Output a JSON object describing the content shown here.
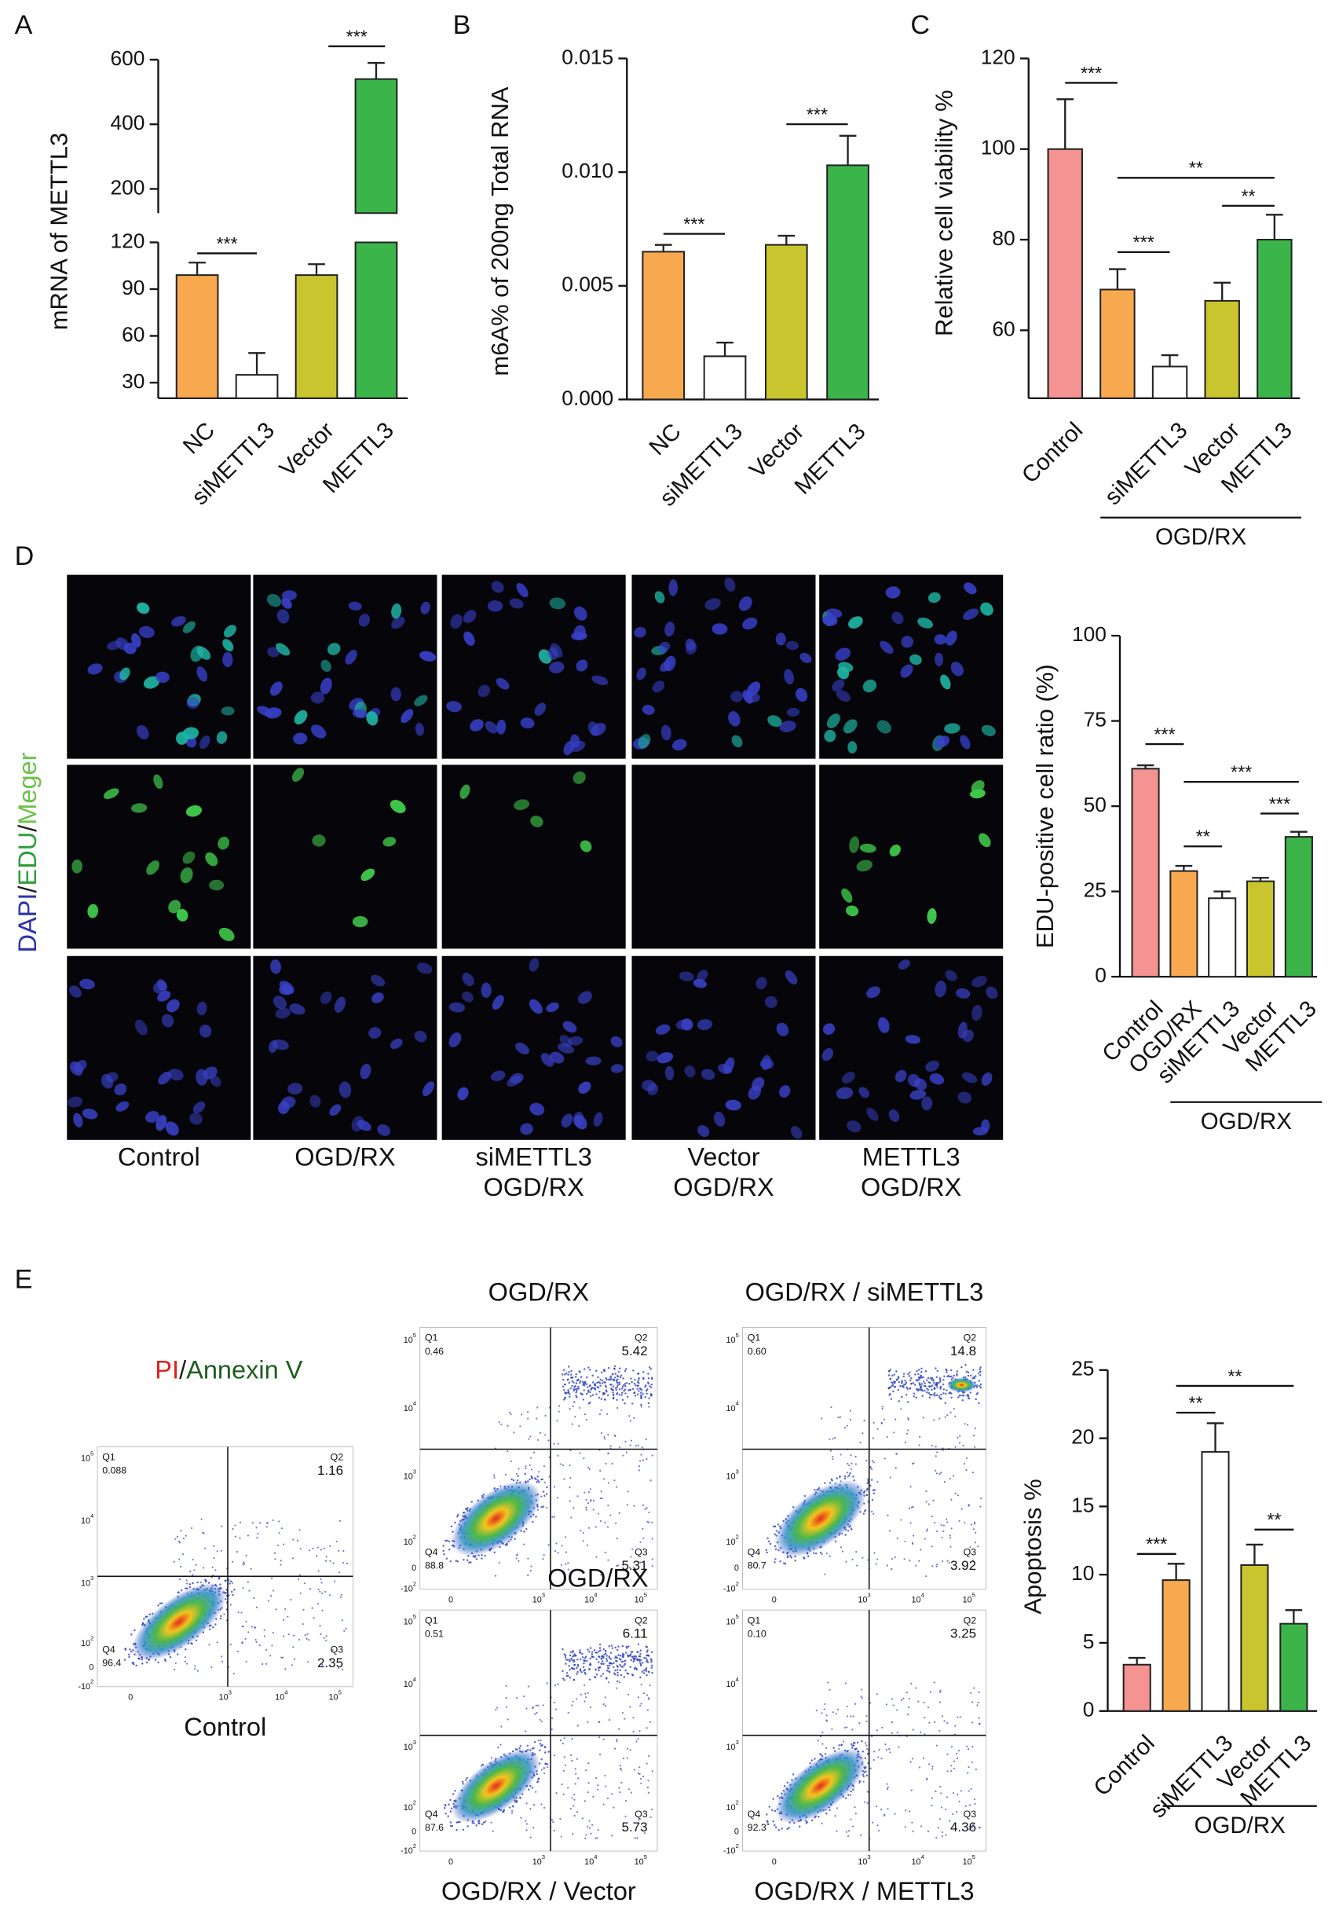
{
  "chart_data": [
    {
      "panel": "A",
      "type": "bar",
      "y_label": "mRNA of METTL3",
      "categories": [
        "NC",
        "siMETTL3",
        "Vector",
        "METTL3"
      ],
      "values": [
        99,
        35,
        99,
        540
      ],
      "error": [
        8,
        14,
        7,
        50
      ],
      "colors": [
        "#F8A94F",
        "#FFFFFF",
        "#C9C52F",
        "#3BB54A"
      ],
      "ylim": [
        20,
        600
      ],
      "ybreak": [
        120,
        125
      ],
      "yticks": [
        30,
        60,
        90,
        120,
        200,
        400,
        600
      ],
      "annotations": [
        "***",
        "***"
      ]
    },
    {
      "panel": "B",
      "type": "bar",
      "y_label": "m6A% of 200ng Total RNA",
      "categories": [
        "NC",
        "siMETTL3",
        "Vector",
        "METTL3"
      ],
      "values": [
        0.0065,
        0.0019,
        0.0068,
        0.0103
      ],
      "error": [
        0.0003,
        0.0006,
        0.0004,
        0.0013
      ],
      "colors": [
        "#F8A94F",
        "#FFFFFF",
        "#C9C52F",
        "#3BB54A"
      ],
      "ylim": [
        0,
        0.015
      ],
      "yticks": [
        {
          "value": 0,
          "label": "0.000"
        },
        0.005,
        {
          "value": 0.01,
          "label": "0.010"
        },
        0.015
      ],
      "annotations": [
        "***",
        "***"
      ]
    },
    {
      "panel": "C",
      "type": "bar",
      "y_label": "Relative cell viability %",
      "categories": [
        "Control",
        null,
        "siMETTL3",
        "Vector",
        "METTL3"
      ],
      "values": [
        100,
        69,
        52,
        66.5,
        80
      ],
      "error": [
        11,
        4.5,
        2.5,
        4,
        5.5
      ],
      "colors": [
        "#F49391",
        "#F8A94F",
        "#FFFFFF",
        "#C9C52F",
        "#3BB54A"
      ],
      "ylim": [
        45,
        120
      ],
      "yticks": [
        60,
        80,
        100,
        120
      ],
      "group_label": "OGD/RX",
      "annotations": [
        "***",
        "**",
        "**",
        "***"
      ]
    },
    {
      "panel": "D",
      "type": "bar",
      "y_label": "EDU-positive cell ratio (%)",
      "categories": [
        "Control",
        "OGD/RX",
        "siMETTL3",
        "Vector",
        "METTL3"
      ],
      "values": [
        61,
        31,
        23,
        28,
        41
      ],
      "error": [
        1,
        1.5,
        2,
        1,
        1.5
      ],
      "colors": [
        "#F49391",
        "#F8A94F",
        "#FFFFFF",
        "#C9C52F",
        "#3BB54A"
      ],
      "ylim": [
        0,
        100
      ],
      "yticks": [
        0,
        25,
        50,
        75,
        100
      ],
      "group_label": "OGD/RX",
      "annotations": [
        "***",
        "***",
        "***",
        "**"
      ]
    },
    {
      "panel": "E",
      "type": "bar",
      "y_label": "Apoptosis %",
      "categories": [
        "Control",
        null,
        "siMETTL3",
        "Vector",
        "METTL3"
      ],
      "values": [
        3.4,
        9.6,
        19,
        10.7,
        6.4
      ],
      "error": [
        0.5,
        1.2,
        2.1,
        1.5,
        1
      ],
      "colors": [
        "#F49391",
        "#F8A94F",
        "#FFFFFF",
        "#C9C52F",
        "#3BB54A"
      ],
      "ylim": [
        0,
        25
      ],
      "yticks": [
        0,
        5,
        10,
        15,
        20,
        25
      ],
      "group_label": "OGD/RX",
      "annotations": [
        "**",
        "**",
        "***",
        "**"
      ]
    }
  ],
  "micrographs": {
    "channel_parts": [
      "DAPI",
      "/",
      "EDU",
      "/",
      "Meger"
    ],
    "channel_colors": [
      "#2E33A8",
      "#222222",
      "#2E9E3A",
      "#222222",
      "#6CC24A"
    ],
    "columns": [
      [
        "Control"
      ],
      [
        "OGD/RX"
      ],
      [
        "siMETTL3",
        "OGD/RX"
      ],
      [
        "Vector",
        "OGD/RX"
      ],
      [
        "METTL3",
        "OGD/RX"
      ]
    ]
  },
  "flow": {
    "legend_parts": [
      "PI",
      "/",
      "Annexin V"
    ],
    "legend_colors": [
      "#E0201B",
      "#222222",
      "#1D5E20"
    ],
    "quadrant_names": [
      "Q1",
      "Q2",
      "Q3",
      "Q4"
    ],
    "yticks": [
      {
        "base": "10",
        "exp": "5"
      },
      {
        "base": "10",
        "exp": "4"
      },
      {
        "base": "10",
        "exp": "3"
      },
      {
        "base": "10",
        "exp": "2"
      },
      {
        "base": "0"
      },
      {
        "base": "-10",
        "exp": "2"
      }
    ],
    "xticks": [
      {
        "base": "0"
      },
      {
        "base": "10",
        "exp": "3"
      },
      {
        "base": "10",
        "exp": "4"
      },
      {
        "base": "10",
        "exp": "5"
      }
    ],
    "plots": [
      {
        "title": "Control",
        "quadrants": [
          "0.088",
          "1.16",
          "2.35",
          "96.4"
        ]
      },
      {
        "title": "OGD/RX",
        "label_below": "OGD/RX",
        "quadrants": [
          "0.46",
          "5.42",
          "5.31",
          "88.8"
        ]
      },
      {
        "title": "OGD/RX / siMETTL3",
        "quadrants": [
          "0.60",
          "14.8",
          "3.92",
          "80.7"
        ]
      },
      {
        "title": "OGD/RX / Vector",
        "quadrants": [
          "0.51",
          "6.11",
          "5.73",
          "87.6"
        ]
      },
      {
        "title": "OGD/RX / METTL3",
        "quadrants": [
          "0.10",
          "3.25",
          "4.36",
          "92.3"
        ]
      }
    ]
  }
}
